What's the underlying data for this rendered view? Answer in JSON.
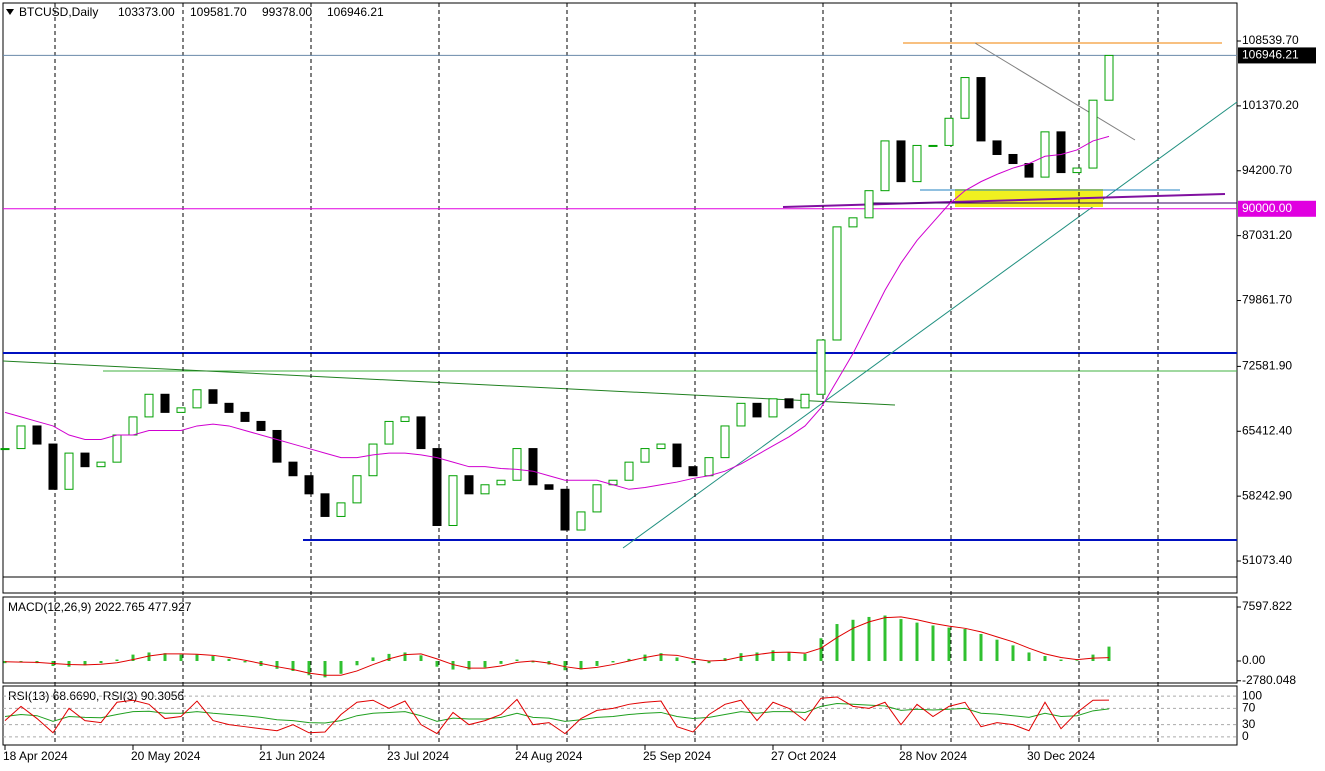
{
  "chart_data": [
    {
      "type": "candlestick",
      "title": "BTCUSD,Daily",
      "header_values": [
        "103373.00",
        "109581.70",
        "99378.00",
        "106946.21"
      ],
      "categories": [
        "18 Apr 2024",
        null,
        null,
        null,
        null,
        null,
        null,
        null,
        "20 May 2024",
        null,
        null,
        null,
        null,
        null,
        null,
        null,
        "21 Jun 2024",
        null,
        null,
        null,
        null,
        null,
        null,
        null,
        "23 Jul 2024",
        null,
        null,
        null,
        null,
        null,
        null,
        null,
        "24 Aug 2024",
        null,
        null,
        null,
        null,
        null,
        null,
        null,
        "25 Sep 2024",
        null,
        null,
        null,
        null,
        null,
        null,
        null,
        "27 Oct 2024",
        null,
        null,
        null,
        null,
        null,
        null,
        null,
        "28 Nov 2024",
        null,
        null,
        null,
        null,
        null,
        null,
        null,
        "30 Dec 2024",
        null,
        null,
        null,
        null,
        null
      ],
      "values": [
        63500,
        66000,
        64000,
        59000,
        63000,
        61500,
        62000,
        65000,
        67000,
        69500,
        67500,
        68000,
        70000,
        68500,
        67500,
        66500,
        65500,
        62000,
        60500,
        58500,
        56000,
        57500,
        60500,
        64000,
        66500,
        67000,
        63500,
        55000,
        60500,
        58500,
        59500,
        60000,
        63500,
        59500,
        59000,
        54500,
        56500,
        59500,
        60000,
        62000,
        63500,
        64000,
        61500,
        60500,
        62500,
        66000,
        68500,
        67000,
        69000,
        68000,
        69500,
        75500,
        88000,
        89000,
        92000,
        97500,
        93000,
        97000,
        97000,
        100000,
        104500,
        97500,
        96000,
        95000,
        93500,
        98500,
        94000,
        94500,
        102000,
        106946.21
      ],
      "ma_values": [
        67500,
        67000,
        66500,
        66000,
        65000,
        64500,
        64500,
        65000,
        65000,
        65500,
        65500,
        65500,
        66000,
        66200,
        66000,
        65500,
        65000,
        64500,
        64000,
        63500,
        63000,
        62500,
        62500,
        62800,
        63000,
        63000,
        62800,
        62500,
        62000,
        61500,
        61500,
        61300,
        61200,
        61000,
        60500,
        60000,
        60000,
        60000,
        59500,
        59000,
        59200,
        59500,
        59800,
        60200,
        60500,
        61000,
        61800,
        62800,
        63800,
        64800,
        66000,
        68000,
        71000,
        74000,
        77500,
        81000,
        84000,
        86500,
        88500,
        90500,
        92000,
        93000,
        93800,
        94500,
        95000,
        95800,
        96000,
        96500,
        97500,
        98000
      ],
      "up_color": "#00a000",
      "down_color": "#000000",
      "ma_color": "#d000d0",
      "ylim": [
        47540,
        112740
      ],
      "yticks": [
        {
          "value": 108539.7,
          "label": "108539.70"
        },
        {
          "value": 101370.2,
          "label": "101370.20"
        },
        {
          "value": 94200.7,
          "label": "94200.70"
        },
        {
          "value": 87031.2,
          "label": "87031.20"
        },
        {
          "value": 79861.7,
          "label": "79861.70"
        },
        {
          "value": 72581.9,
          "label": "72581.90"
        },
        {
          "value": 65412.4,
          "label": "65412.40"
        },
        {
          "value": 58242.9,
          "label": "58242.90"
        },
        {
          "value": 51073.4,
          "label": "51073.40"
        }
      ],
      "markers": [
        106946.21,
        {
          "value": 90000,
          "label": "90000.00"
        }
      ],
      "marker_colors": [
        "#000000",
        "#e000e0"
      ],
      "grid": true
    },
    {
      "type": "macd",
      "title": "MACD(12,26,9) 2022.765 477.927",
      "values": [
        -300,
        -200,
        -300,
        -700,
        -800,
        -600,
        -300,
        200,
        900,
        1200,
        1100,
        900,
        900,
        700,
        300,
        -200,
        -700,
        -1100,
        -1400,
        -2000,
        -2300,
        -1800,
        -600,
        500,
        1000,
        1200,
        800,
        -800,
        -1200,
        -1200,
        -900,
        -400,
        200,
        -200,
        -500,
        -1300,
        -1200,
        -700,
        -200,
        300,
        900,
        1100,
        500,
        -300,
        -300,
        400,
        1100,
        1200,
        1500,
        1200,
        1000,
        3200,
        5200,
        5800,
        6200,
        6400,
        5900,
        5400,
        5000,
        4700,
        4500,
        3800,
        3000,
        2200,
        1200,
        700,
        200,
        100,
        900,
        2022.765
      ],
      "signal": [
        -100,
        -150,
        -200,
        -350,
        -500,
        -550,
        -450,
        -250,
        200,
        700,
        1000,
        1000,
        950,
        800,
        500,
        100,
        -350,
        -800,
        -1200,
        -1700,
        -2000,
        -2000,
        -1400,
        -500,
        300,
        900,
        1000,
        300,
        -500,
        -1000,
        -1000,
        -700,
        -200,
        0,
        -300,
        -800,
        -1100,
        -900,
        -500,
        0,
        500,
        900,
        800,
        300,
        0,
        100,
        600,
        900,
        1200,
        1250,
        1100,
        1800,
        3300,
        4600,
        5500,
        6100,
        6200,
        5800,
        5300,
        4900,
        4600,
        4100,
        3400,
        2700,
        1800,
        1000,
        500,
        200,
        400,
        477.927
      ],
      "color": "#30c030",
      "signal_color": "#e00000",
      "ylim": [
        -3095,
        9005
      ],
      "yticks": [
        7597.822,
        {
          "value": 0,
          "label": "0.00"
        },
        -2780.048
      ]
    },
    {
      "type": "rsi",
      "title": "RSI(13) 68.6690, RSI(3) 90.3056",
      "values": [
        50,
        55,
        52,
        38,
        50,
        48,
        47,
        55,
        62,
        63,
        58,
        58,
        62,
        58,
        55,
        52,
        48,
        42,
        40,
        35,
        34,
        40,
        52,
        58,
        60,
        62,
        52,
        38,
        46,
        44,
        44,
        48,
        58,
        48,
        46,
        38,
        42,
        48,
        50,
        55,
        58,
        60,
        50,
        45,
        48,
        55,
        62,
        58,
        62,
        62,
        60,
        75,
        82,
        80,
        78,
        76,
        65,
        68,
        66,
        68,
        70,
        58,
        56,
        52,
        48,
        58,
        50,
        52,
        64,
        68.669
      ],
      "fast": [
        40,
        75,
        45,
        10,
        70,
        40,
        35,
        85,
        90,
        80,
        45,
        50,
        88,
        40,
        30,
        25,
        20,
        15,
        30,
        10,
        12,
        55,
        85,
        90,
        70,
        88,
        30,
        8,
        60,
        30,
        40,
        55,
        92,
        30,
        35,
        8,
        45,
        65,
        70,
        80,
        85,
        88,
        25,
        12,
        55,
        80,
        90,
        40,
        85,
        70,
        40,
        95,
        98,
        75,
        70,
        85,
        30,
        80,
        50,
        75,
        85,
        25,
        35,
        30,
        15,
        85,
        20,
        60,
        90,
        90.3056
      ],
      "color": "#20a020",
      "fast_color": "#e00000",
      "ylim": [
        -20,
        125
      ],
      "yticks": [
        100,
        70,
        30,
        0
      ]
    }
  ]
}
